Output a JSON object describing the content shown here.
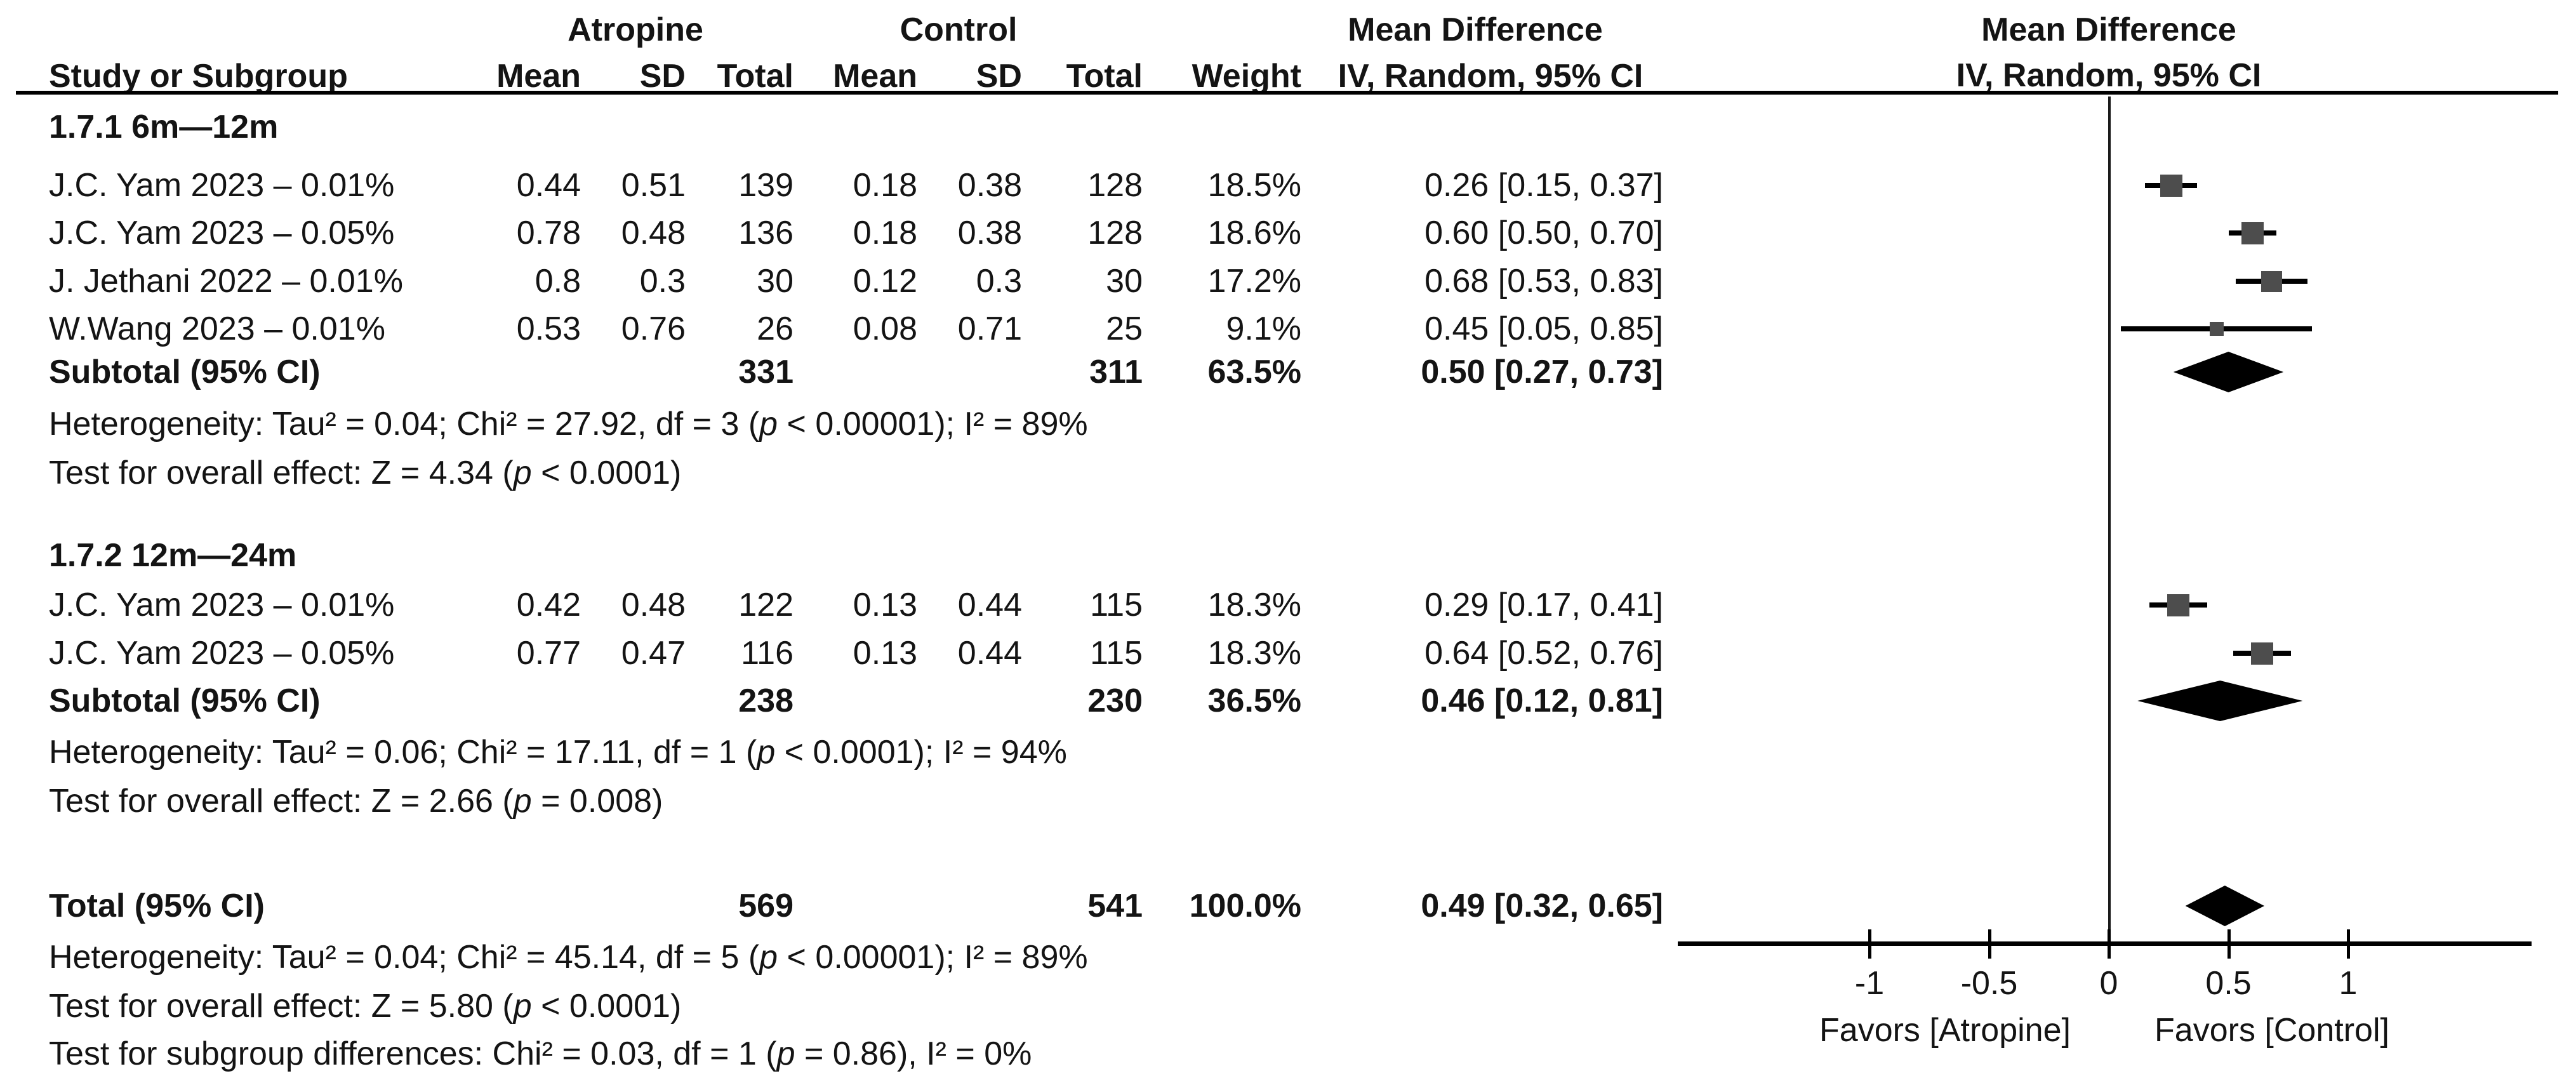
{
  "headers": {
    "atropine": "Atropine",
    "control": "Control",
    "md": "Mean Difference",
    "md_plot": "Mean Difference"
  },
  "cols": {
    "study": "Study or Subgroup",
    "mean": "Mean",
    "sd": "SD",
    "total": "Total",
    "mean2": "Mean",
    "sd2": "SD",
    "total2": "Total",
    "weight": "Weight",
    "ci": "IV, Random, 95% CI",
    "ci_plot": "IV, Random, 95% CI"
  },
  "sections": [
    {
      "label": "1.7.1 6m—12m",
      "rows": [
        {
          "study": "J.C. Yam 2023 – 0.01%",
          "mean1": "0.44",
          "sd1": "0.51",
          "total1": "139",
          "mean2": "0.18",
          "sd2": "0.38",
          "total2": "128",
          "weight": "18.5%",
          "md": "0.26 [0.15, 0.37]"
        },
        {
          "study": "J.C. Yam 2023 – 0.05%",
          "mean1": "0.78",
          "sd1": "0.48",
          "total1": "136",
          "mean2": "0.18",
          "sd2": "0.38",
          "total2": "128",
          "weight": "18.6%",
          "md": "0.60 [0.50, 0.70]"
        },
        {
          "study": "J. Jethani 2022 – 0.01%",
          "mean1": "0.8",
          "sd1": "0.3",
          "total1": "30",
          "mean2": "0.12",
          "sd2": "0.3",
          "total2": "30",
          "weight": "17.2%",
          "md": "0.68 [0.53, 0.83]"
        },
        {
          "study": "W.Wang 2023 – 0.01%",
          "mean1": "0.53",
          "sd1": "0.76",
          "total1": "26",
          "mean2": "0.08",
          "sd2": "0.71",
          "total2": "25",
          "weight": "9.1%",
          "md": "0.45 [0.05, 0.85]"
        }
      ],
      "subtotal": {
        "label": "Subtotal (95% CI)",
        "total1": "331",
        "total2": "311",
        "weight": "63.5%",
        "md": "0.50 [0.27, 0.73]"
      },
      "heterogeneity": "Heterogeneity: Tau² = 0.04; Chi² = 27.92, df = 3 (p < 0.00001); I² = 89%",
      "overall_test": "Test for overall effect: Z = 4.34 (p < 0.0001)"
    },
    {
      "label": "1.7.2 12m—24m",
      "rows": [
        {
          "study": "J.C. Yam 2023 – 0.01%",
          "mean1": "0.42",
          "sd1": "0.48",
          "total1": "122",
          "mean2": "0.13",
          "sd2": "0.44",
          "total2": "115",
          "weight": "18.3%",
          "md": "0.29 [0.17, 0.41]"
        },
        {
          "study": "J.C. Yam 2023 – 0.05%",
          "mean1": "0.77",
          "sd1": "0.47",
          "total1": "116",
          "mean2": "0.13",
          "sd2": "0.44",
          "total2": "115",
          "weight": "18.3%",
          "md": "0.64 [0.52, 0.76]"
        }
      ],
      "subtotal": {
        "label": "Subtotal (95% CI)",
        "total1": "238",
        "total2": "230",
        "weight": "36.5%",
        "md": "0.46 [0.12, 0.81]"
      },
      "heterogeneity": "Heterogeneity: Tau² = 0.06; Chi² = 17.11, df = 1 (p < 0.0001); I² = 94%",
      "overall_test": "Test for overall effect: Z = 2.66 (p = 0.008)"
    }
  ],
  "total": {
    "label": "Total (95% CI)",
    "total1": "569",
    "total2": "541",
    "weight": "100.0%",
    "md": "0.49 [0.32, 0.65]"
  },
  "footer": {
    "heterogeneity": "Heterogeneity: Tau² = 0.04; Chi² = 45.14, df = 5 (p < 0.00001); I² = 89%",
    "overall_test": "Test for overall effect: Z = 5.80 (p < 0.0001)",
    "subgroup_test": "Test for subgroup differences: Chi² = 0.03, df = 1 (p = 0.86), I² = 0%"
  },
  "axis": {
    "ticks": [
      {
        "v": -1,
        "label": "-1"
      },
      {
        "v": -0.5,
        "label": "-0.5"
      },
      {
        "v": 0,
        "label": "0"
      },
      {
        "v": 0.5,
        "label": "0.5"
      },
      {
        "v": 1,
        "label": "1"
      }
    ],
    "favors_left": "Favors [Atropine]",
    "favors_right": "Favors [Control]"
  },
  "colors": {
    "marker_square": "#4d4d4d",
    "diamond": "#000000",
    "line": "#000000"
  },
  "chart_data": {
    "type": "scatter",
    "title": "Mean Difference — IV, Random, 95% CI forest plot",
    "xlabel": "Mean Difference",
    "xlim": [
      -1.8,
      1.9
    ],
    "xticks": [
      -1,
      -0.5,
      0,
      0.5,
      1
    ],
    "grid": false,
    "legend": "none",
    "points": [
      {
        "label": "J.C. Yam 2023 – 0.01% (6m—12m)",
        "md": 0.26,
        "ci_low": 0.15,
        "ci_high": 0.37,
        "weight_pct": 18.5,
        "shape": "square",
        "anchor": "anchor-s1r1"
      },
      {
        "label": "J.C. Yam 2023 – 0.05% (6m—12m)",
        "md": 0.6,
        "ci_low": 0.5,
        "ci_high": 0.7,
        "weight_pct": 18.6,
        "shape": "square",
        "anchor": "anchor-s1r2"
      },
      {
        "label": "J. Jethani 2022 – 0.01% (6m—12m)",
        "md": 0.68,
        "ci_low": 0.53,
        "ci_high": 0.83,
        "weight_pct": 17.2,
        "shape": "square",
        "anchor": "anchor-s1r3"
      },
      {
        "label": "W.Wang 2023 – 0.01% (6m—12m)",
        "md": 0.45,
        "ci_low": 0.05,
        "ci_high": 0.85,
        "weight_pct": 9.1,
        "shape": "square",
        "anchor": "anchor-s1r4"
      },
      {
        "label": "Subtotal 6m—12m",
        "md": 0.5,
        "ci_low": 0.27,
        "ci_high": 0.73,
        "weight_pct": 63.5,
        "shape": "diamond",
        "anchor": "anchor-s1sub"
      },
      {
        "label": "J.C. Yam 2023 – 0.01% (12m—24m)",
        "md": 0.29,
        "ci_low": 0.17,
        "ci_high": 0.41,
        "weight_pct": 18.3,
        "shape": "square",
        "anchor": "anchor-s2r1"
      },
      {
        "label": "J.C. Yam 2023 – 0.05% (12m—24m)",
        "md": 0.64,
        "ci_low": 0.52,
        "ci_high": 0.76,
        "weight_pct": 18.3,
        "shape": "square",
        "anchor": "anchor-s2r2"
      },
      {
        "label": "Subtotal 12m—24m",
        "md": 0.46,
        "ci_low": 0.12,
        "ci_high": 0.81,
        "weight_pct": 36.5,
        "shape": "diamond",
        "anchor": "anchor-s2sub"
      },
      {
        "label": "Total",
        "md": 0.49,
        "ci_low": 0.32,
        "ci_high": 0.65,
        "weight_pct": 100.0,
        "shape": "diamond",
        "anchor": "anchor-total"
      }
    ]
  }
}
